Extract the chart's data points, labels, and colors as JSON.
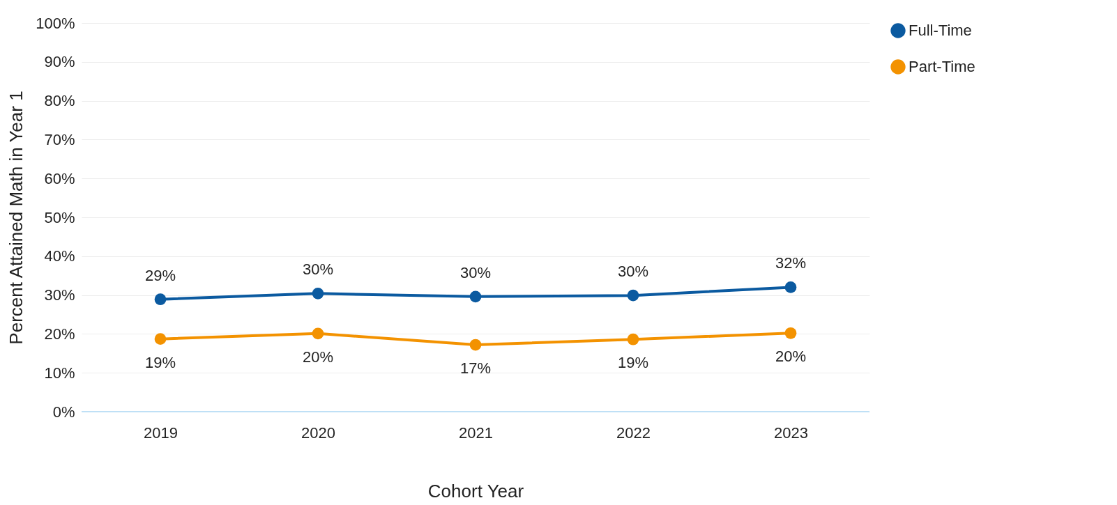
{
  "chart_data": {
    "type": "line",
    "xlabel": "Cohort Year",
    "ylabel": "Percent Attained Math in Year 1",
    "categories": [
      "2019",
      "2020",
      "2021",
      "2022",
      "2023"
    ],
    "series": [
      {
        "name": "Full-Time",
        "color": "#0b5aa0",
        "values": [
          28.9,
          30.4,
          29.6,
          29.9,
          32.0
        ],
        "value_labels": [
          "29%",
          "30%",
          "30%",
          "30%",
          "32%"
        ]
      },
      {
        "name": "Part-Time",
        "color": "#f39200",
        "values": [
          18.7,
          20.1,
          17.2,
          18.6,
          20.2
        ],
        "value_labels": [
          "19%",
          "20%",
          "17%",
          "19%",
          "20%"
        ]
      }
    ],
    "ylim": [
      0,
      100
    ],
    "yticks": [
      {
        "value": 0,
        "label": "0%"
      },
      {
        "value": 10,
        "label": "10%"
      },
      {
        "value": 20,
        "label": "20%"
      },
      {
        "value": 30,
        "label": "30%"
      },
      {
        "value": 40,
        "label": "40%"
      },
      {
        "value": 50,
        "label": "50%"
      },
      {
        "value": 60,
        "label": "60%"
      },
      {
        "value": 70,
        "label": "70%"
      },
      {
        "value": 80,
        "label": "80%"
      },
      {
        "value": 90,
        "label": "90%"
      },
      {
        "value": 100,
        "label": "100%"
      }
    ],
    "grid": "y",
    "legend": "right",
    "marker": "circle",
    "line_style": "solid"
  }
}
